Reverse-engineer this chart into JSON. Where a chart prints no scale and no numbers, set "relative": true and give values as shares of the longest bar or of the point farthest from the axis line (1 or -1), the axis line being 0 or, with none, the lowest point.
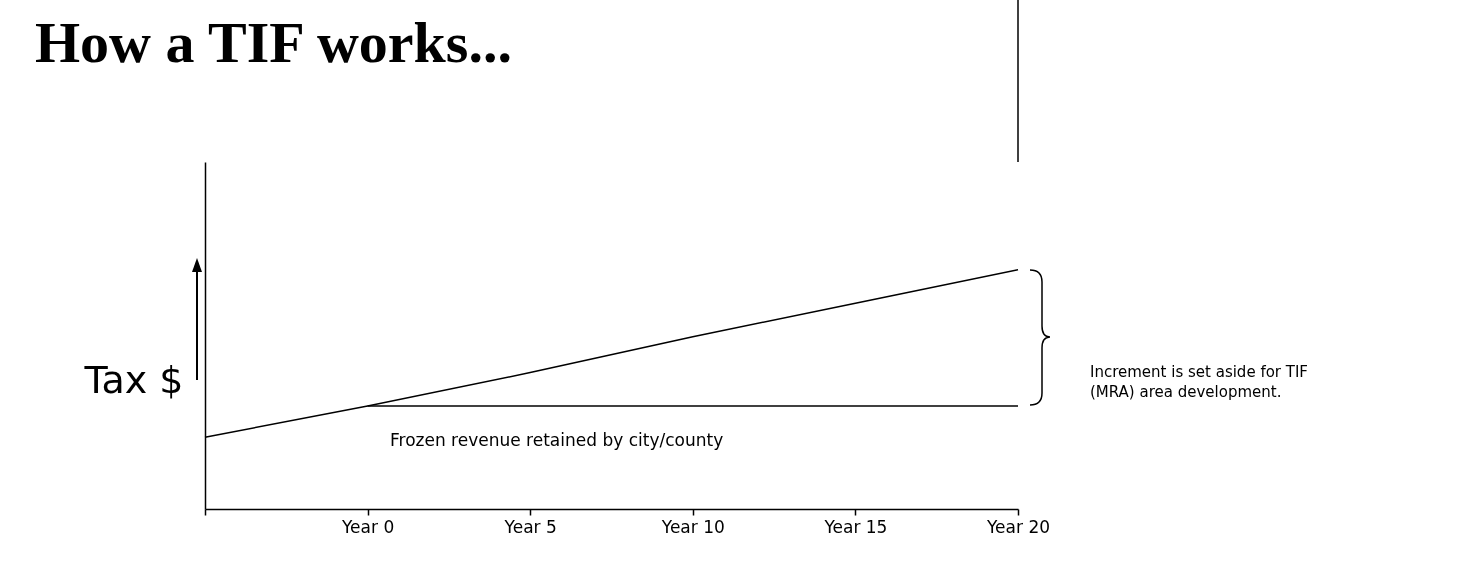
{
  "chart_data": {
    "type": "line",
    "title": "How a TIF works...",
    "ylabel": "Tax $",
    "relative": true,
    "categories": [
      null,
      "Year 0",
      "Year 5",
      "Year 10",
      "Year 15",
      "Year 20"
    ],
    "series": [
      {
        "color": "#000000",
        "values": [
          0.3,
          0.43,
          0.57,
          0.72,
          0.86,
          1
        ]
      },
      {
        "color": "#000000",
        "values": [
          null,
          0.43,
          0.43,
          0.43,
          0.43,
          0.43
        ]
      }
    ],
    "annotations": [
      "Frozen revenue retained by city/county",
      "Increment is set aside for TIF (MRA) area development."
    ],
    "grid": false,
    "marker": "none",
    "line_style": "solid"
  }
}
